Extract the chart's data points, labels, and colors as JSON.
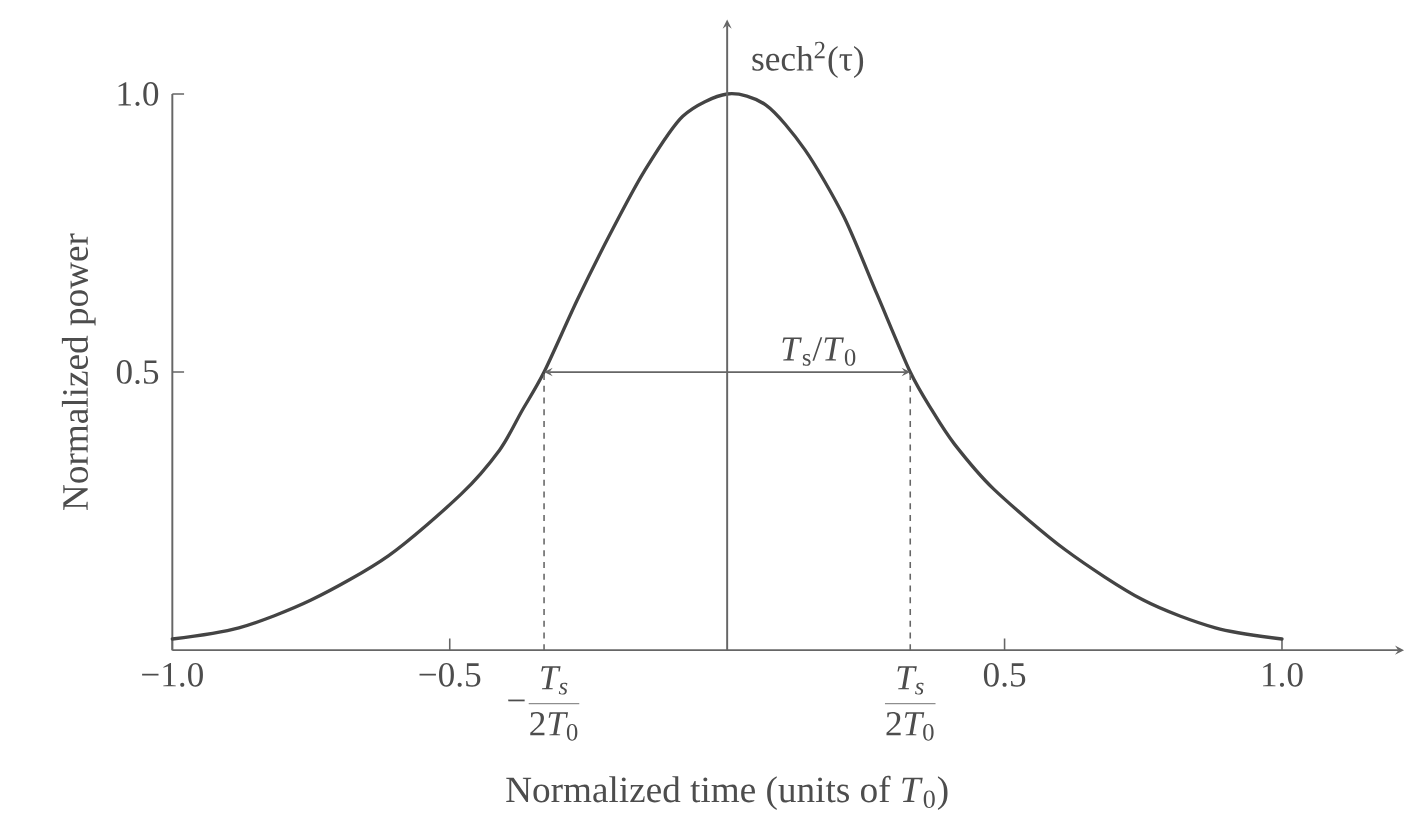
{
  "chart_data": {
    "type": "line",
    "xlabel": "Normalized time (units of *T*$_{0}$)",
    "ylabel": "Normalized power",
    "x": [
      -1.0,
      -0.88,
      -0.75,
      -0.61,
      -0.48,
      -0.41,
      -0.37,
      -0.33,
      -0.27,
      -0.21,
      -0.15,
      -0.08,
      0,
      0.07,
      0.14,
      0.21,
      0.27,
      0.33,
      0.37,
      0.41,
      0.48,
      0.61,
      0.75,
      0.88,
      1.0
    ],
    "series": [
      {
        "name": "sech$^{2}$(τ)",
        "color": "#444444",
        "values": [
          0.02,
          0.04,
          0.09,
          0.17,
          0.28,
          0.36,
          0.43,
          0.5,
          0.63,
          0.75,
          0.86,
          0.96,
          1.0,
          0.98,
          0.9,
          0.78,
          0.64,
          0.5,
          0.43,
          0.37,
          0.29,
          0.18,
          0.09,
          0.04,
          0.02
        ]
      }
    ],
    "xlim": [
      -1.0,
      1.22
    ],
    "ylim": [
      0,
      1.0
    ],
    "xticks": [
      {
        "value": -1,
        "label": "−1.0"
      },
      {
        "value": -0.5,
        "label": "−0.5"
      },
      0.5,
      {
        "value": 1,
        "label": "1.0"
      }
    ],
    "yticks": [
      0.5,
      {
        "value": 1,
        "label": "1.0"
      }
    ],
    "ref_lines": [
      {
        "axis": "x",
        "value": 0,
        "line_style": "solid",
        "color": "#666666"
      },
      {
        "axis": "x",
        "value": -0.33,
        "label": "\\mbox{−}\\frac{T_s}{2T_0}",
        "line_style": "dashed",
        "color": "#666666"
      },
      {
        "axis": "x",
        "value": 0.33,
        "label": "\\frac{T_s}{2T_0}",
        "line_style": "dashed",
        "color": "#666666"
      }
    ],
    "annotations": [
      {
        "text": "*T*$_{s}$/*T*$_{0}$",
        "x": 0.33,
        "y": 0.5
      }
    ],
    "line_style": "solid"
  }
}
